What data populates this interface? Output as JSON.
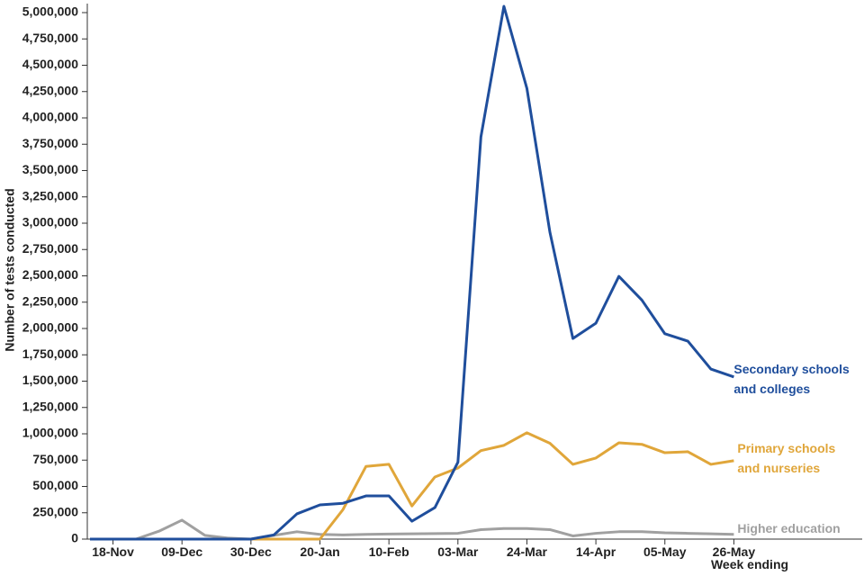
{
  "chart_data": {
    "type": "line",
    "ylabel": "Number of tests conducted",
    "xlabel": "Week ending",
    "categories": [
      null,
      "18-Nov",
      null,
      null,
      "09-Dec",
      null,
      null,
      "30-Dec",
      null,
      null,
      "20-Jan",
      null,
      null,
      "10-Feb",
      null,
      null,
      "03-Mar",
      null,
      null,
      "24-Mar",
      null,
      null,
      "14-Apr",
      null,
      null,
      "05-May",
      null,
      null,
      "26-May"
    ],
    "series": [
      {
        "name": "Secondary schools and colleges",
        "color": "#1f4e9c",
        "values": [
          0,
          0,
          0,
          0,
          0,
          0,
          0,
          0,
          40000,
          240000,
          325000,
          340000,
          410000,
          410000,
          170000,
          300000,
          730000,
          3820000,
          5060000,
          4280000,
          2915000,
          1905000,
          2050000,
          2495000,
          2270000,
          1950000,
          1880000,
          1615000,
          1540000
        ]
      },
      {
        "name": "Primary schools and nurseries",
        "color": "#e0a63a",
        "values": [
          0,
          0,
          0,
          0,
          0,
          0,
          0,
          0,
          0,
          0,
          0,
          280000,
          690000,
          710000,
          315000,
          590000,
          675000,
          840000,
          890000,
          1010000,
          910000,
          710000,
          770000,
          915000,
          900000,
          820000,
          830000,
          710000,
          745000
        ]
      },
      {
        "name": "Higher education",
        "color": "#a0a0a0",
        "values": [
          0,
          0,
          0,
          75000,
          180000,
          35000,
          10000,
          0,
          35000,
          70000,
          45000,
          40000,
          45000,
          48000,
          50000,
          52000,
          55000,
          90000,
          100000,
          100000,
          90000,
          30000,
          55000,
          70000,
          70000,
          60000,
          55000,
          50000,
          45000
        ]
      }
    ],
    "ylim": [
      0,
      5000000
    ],
    "yticks": [
      0,
      {
        "value": 250000,
        "label": "250,000"
      },
      {
        "value": 500000,
        "label": "500,000"
      },
      {
        "value": 750000,
        "label": "750,000"
      },
      {
        "value": 1000000,
        "label": "1,000,000"
      },
      {
        "value": 1250000,
        "label": "1,250,000"
      },
      {
        "value": 1500000,
        "label": "1,500,000"
      },
      {
        "value": 1750000,
        "label": "1,750,000"
      },
      {
        "value": 2000000,
        "label": "2,000,000"
      },
      {
        "value": 2250000,
        "label": "2,250,000"
      },
      {
        "value": 2500000,
        "label": "2,500,000"
      },
      {
        "value": 2750000,
        "label": "2,750,000"
      },
      {
        "value": 3000000,
        "label": "3,000,000"
      },
      {
        "value": 3250000,
        "label": "3,250,000"
      },
      {
        "value": 3500000,
        "label": "3,500,000"
      },
      {
        "value": 3750000,
        "label": "3,750,000"
      },
      {
        "value": 4000000,
        "label": "4,000,000"
      },
      {
        "value": 4250000,
        "label": "4,250,000"
      },
      {
        "value": 4500000,
        "label": "4,500,000"
      },
      {
        "value": 4750000,
        "label": "4,750,000"
      },
      {
        "value": 5000000,
        "label": "5,000,000"
      }
    ]
  }
}
